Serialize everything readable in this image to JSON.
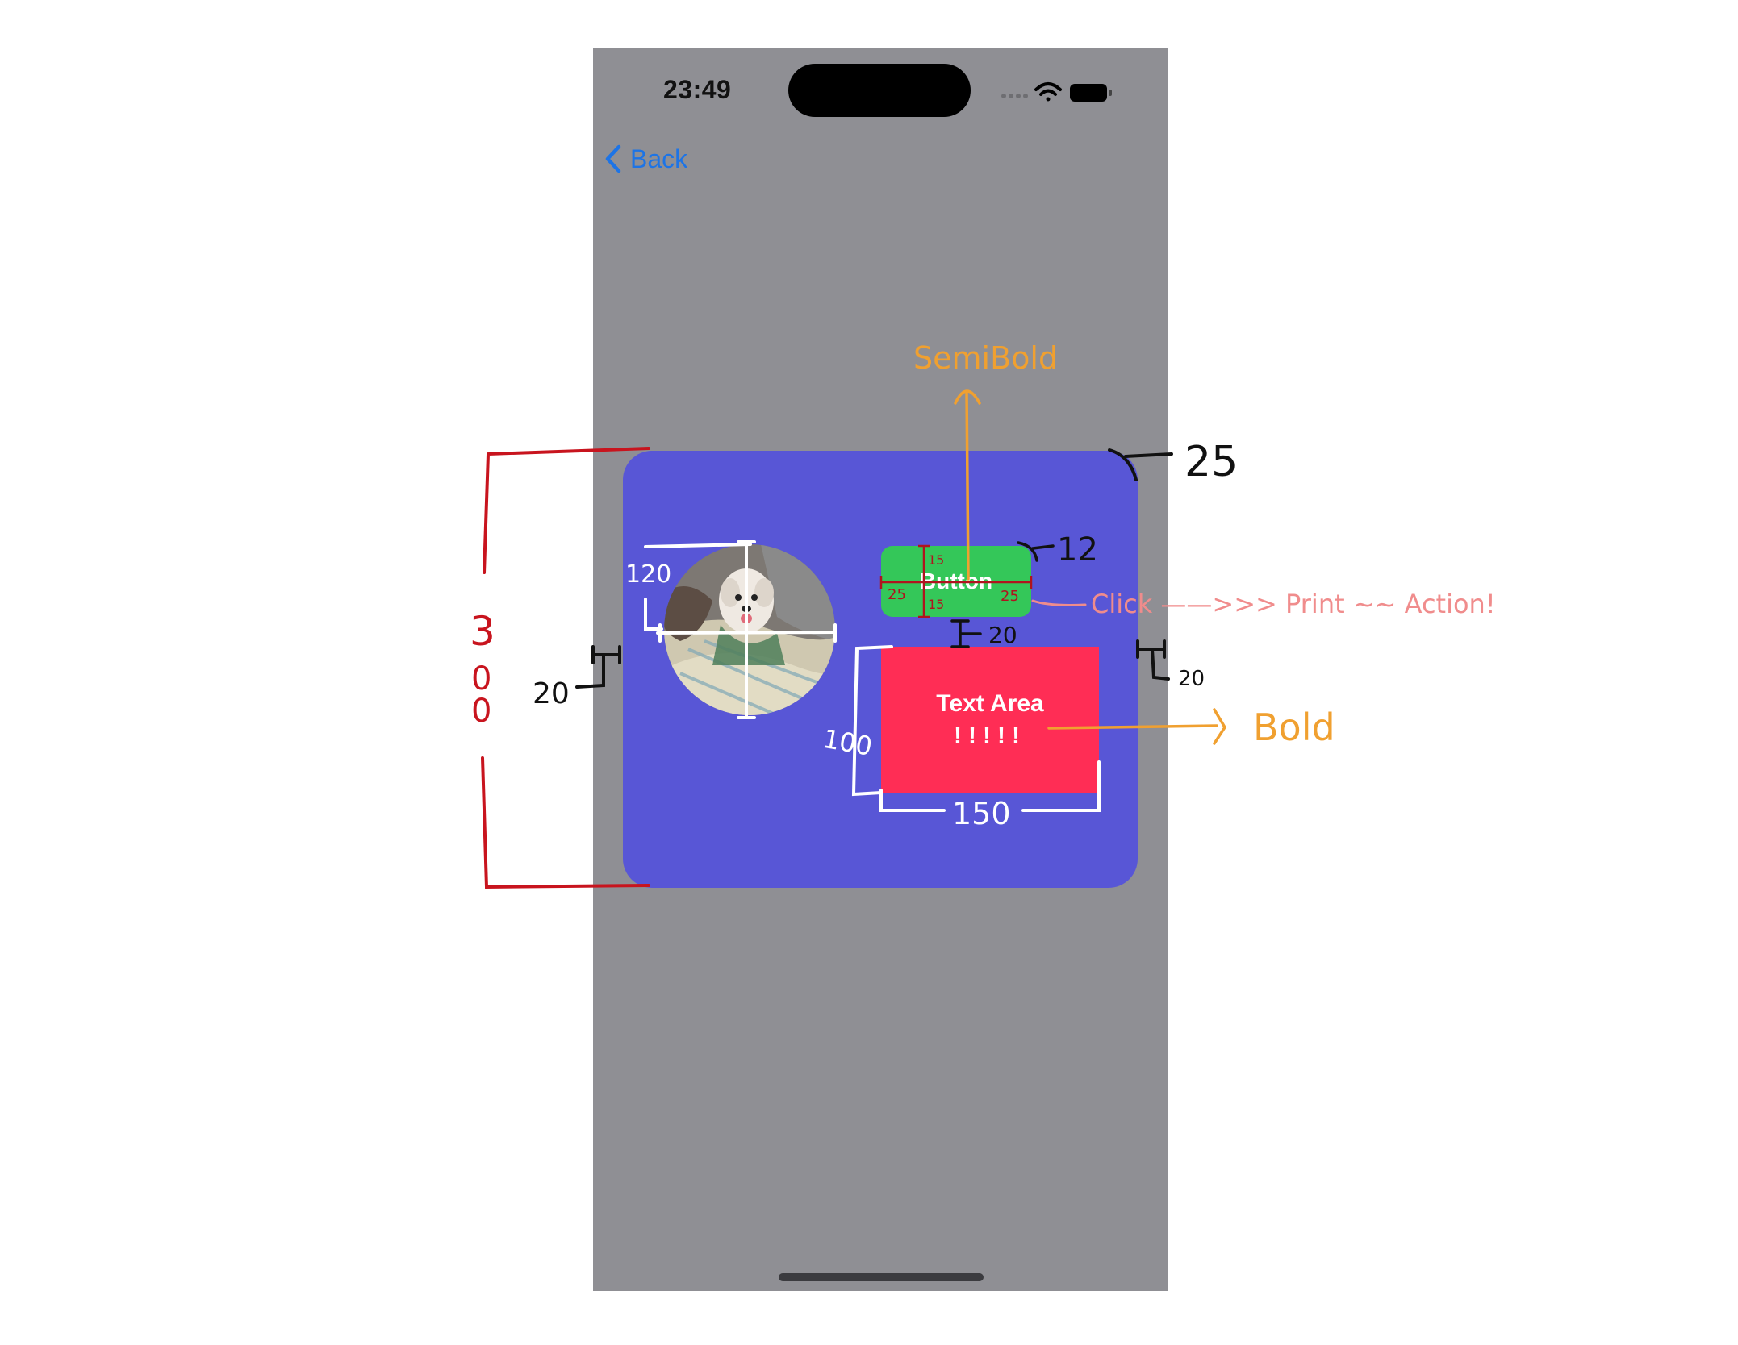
{
  "status_bar": {
    "time": "23:49",
    "icons": [
      "signal-dots-icon",
      "wifi-icon",
      "battery-icon"
    ]
  },
  "nav": {
    "back_icon": "chevron-left-icon",
    "back_label": "Back"
  },
  "card": {
    "color": "#5856d6",
    "image": {
      "description_icon": "dog-photo"
    },
    "button": {
      "label": "Button",
      "color": "#34c759"
    },
    "text_area": {
      "line1": "Text Area",
      "line2": "!!!!!",
      "color": "#ff2d55"
    }
  },
  "annotations": {
    "card_height": [
      "3",
      "0",
      "0"
    ],
    "corner_radius": "25",
    "left_padding": "20",
    "right_padding": "20",
    "image_size": "120",
    "button_radius": "12",
    "button_padding_top": "15",
    "button_padding_bottom": "15",
    "button_padding_left": "25",
    "button_padding_right": "25",
    "button_gap": "20",
    "text_area_height": "100",
    "text_area_width": "150",
    "button_font": "SemiBold",
    "text_area_font": "Bold",
    "button_action": "Click ——>>> Print ~~ Action!"
  },
  "colors": {
    "phone_bg": "#8f8f94",
    "accent_blue": "#1d74e6",
    "annotation_red": "#c8141e",
    "annotation_orange": "#f0a030",
    "annotation_pink": "#f08c8c"
  }
}
